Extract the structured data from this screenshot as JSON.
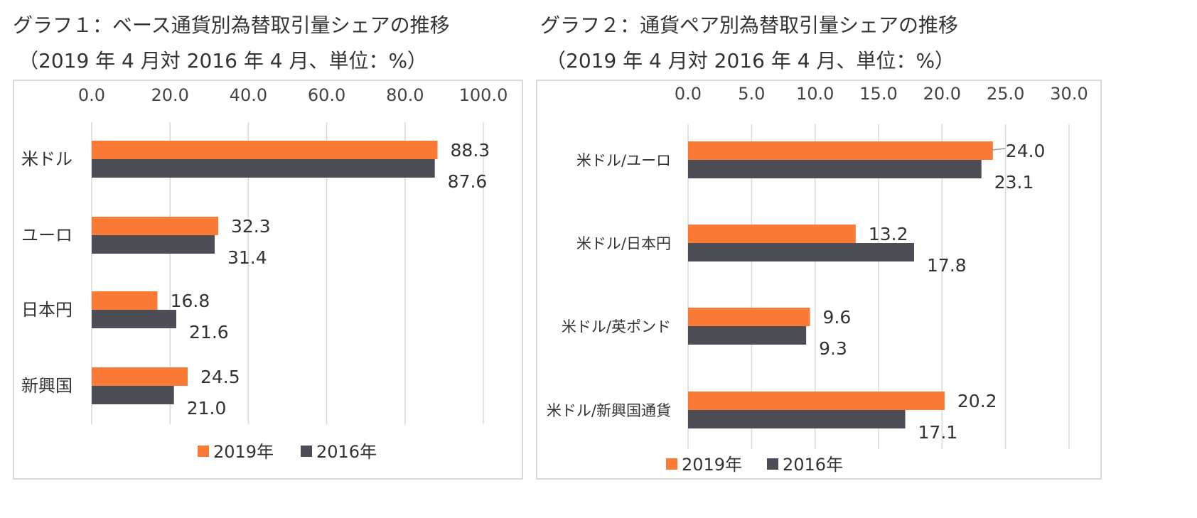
{
  "colors": {
    "series_2019": "#fb7a35",
    "series_2016": "#4d4e55",
    "grid": "#d9d9d9",
    "text": "#333333"
  },
  "chart_data": [
    {
      "type": "bar",
      "orientation": "horizontal",
      "title": "グラフ１：ベース通貨別為替取引量シェアの推移",
      "subtitle": "（2019 年 4 月対 2016 年 4 月、単位：%）",
      "xlim": [
        0,
        100
      ],
      "x_ticks": [
        "0.0",
        "20.0",
        "40.0",
        "60.0",
        "80.0",
        "100.0"
      ],
      "x_tick_values": [
        0,
        20,
        40,
        60,
        80,
        100
      ],
      "axis_position": "top",
      "grid": true,
      "legend_position": "bottom",
      "categories": [
        "米ドル",
        "ユーロ",
        "日本円",
        "新興国"
      ],
      "series": [
        {
          "name": "2019年",
          "values": [
            88.3,
            32.3,
            16.8,
            24.5
          ],
          "labels": [
            "88.3",
            "32.3",
            "16.8",
            "24.5"
          ]
        },
        {
          "name": "2016年",
          "values": [
            87.6,
            31.4,
            21.6,
            21.0
          ],
          "labels": [
            "87.6",
            "31.4",
            "21.6",
            "21.0"
          ]
        }
      ]
    },
    {
      "type": "bar",
      "orientation": "horizontal",
      "title": "グラフ２：通貨ペア別為替取引量シェアの推移",
      "subtitle": "（2019 年 4 月対 2016 年 4 月、単位：%）",
      "xlim": [
        0,
        30
      ],
      "x_ticks": [
        "0.0",
        "5.0",
        "10.0",
        "15.0",
        "20.0",
        "25.0",
        "30.0"
      ],
      "x_tick_values": [
        0,
        5,
        10,
        15,
        20,
        25,
        30
      ],
      "axis_position": "top",
      "grid": true,
      "legend_position": "bottom",
      "categories": [
        "米ドル/ユーロ",
        "米ドル/日本円",
        "米ドル/英ポンド",
        "米ドル/新興国通貨"
      ],
      "series": [
        {
          "name": "2019年",
          "values": [
            24.0,
            13.2,
            9.6,
            20.2
          ],
          "labels": [
            "24.0",
            "13.2",
            "9.6",
            "20.2"
          ]
        },
        {
          "name": "2016年",
          "values": [
            23.1,
            17.8,
            9.3,
            17.1
          ],
          "labels": [
            "23.1",
            "17.8",
            "9.3",
            "17.1"
          ]
        }
      ]
    }
  ]
}
